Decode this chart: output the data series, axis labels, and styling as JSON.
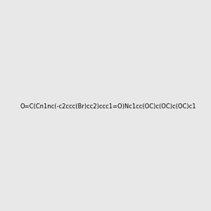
{
  "smiles": "O=C(Cn1nc(-c2ccc(Br)cc2)ccc1=O)Nc1cc(OC)c(OC)c(OC)c1",
  "image_size": 300,
  "background_color": "#e8e8e8",
  "atom_colors": {
    "N": "#0000FF",
    "O": "#FF0000",
    "Br": "#FF8C00"
  },
  "title": ""
}
